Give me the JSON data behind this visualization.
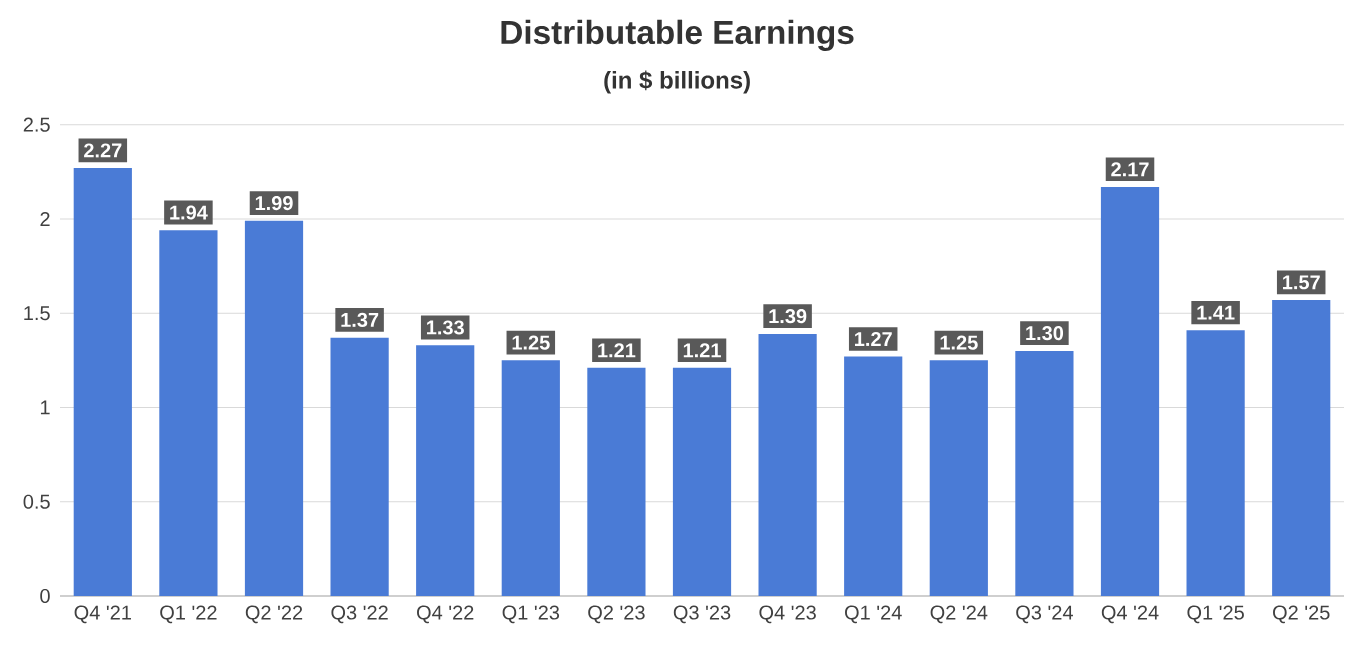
{
  "chart_data": {
    "type": "bar",
    "title": "Distributable Earnings",
    "subtitle": "(in $ billions)",
    "categories": [
      "Q4 '21",
      "Q1 '22",
      "Q2 '22",
      "Q3 '22",
      "Q4 '22",
      "Q1 '23",
      "Q2 '23",
      "Q3 '23",
      "Q4 '23",
      "Q1 '24",
      "Q2 '24",
      "Q3 '24",
      "Q4 '24",
      "Q1 '25",
      "Q2 '25"
    ],
    "values": [
      2.27,
      1.94,
      1.99,
      1.37,
      1.33,
      1.25,
      1.21,
      1.21,
      1.39,
      1.27,
      1.25,
      1.3,
      2.17,
      1.41,
      1.57
    ],
    "value_labels": [
      "2.27",
      "1.94",
      "1.99",
      "1.37",
      "1.33",
      "1.25",
      "1.21",
      "1.21",
      "1.39",
      "1.27",
      "1.25",
      "1.30",
      "2.17",
      "1.41",
      "1.57"
    ],
    "color": "#4a7bd6",
    "ylim": [
      0,
      2.5
    ],
    "yticks": [
      0,
      0.5,
      1,
      1.5,
      2,
      2.5
    ],
    "grid": "y"
  }
}
